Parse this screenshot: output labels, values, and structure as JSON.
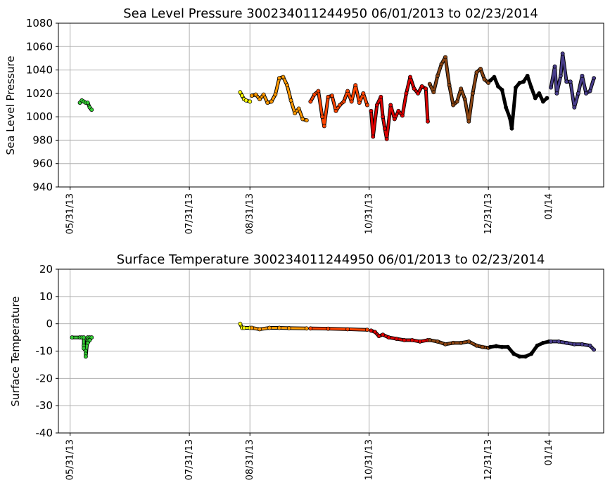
{
  "chart_data": [
    {
      "type": "scatter",
      "title": "Sea Level Pressure 300234011244950  06/01/2013 to 02/23/2014",
      "xlabel": "",
      "ylabel": "Sea Level Pressure",
      "ylim": [
        940,
        1080
      ],
      "yticks": [
        940,
        960,
        980,
        1000,
        1020,
        1040,
        1060,
        1080
      ],
      "x_axis": {
        "type": "date",
        "range": [
          "2013-05-25",
          "2014-02-28"
        ]
      },
      "xticks": [
        {
          "date": "2013-05-31",
          "label": "05/31/13"
        },
        {
          "date": "2013-07-31",
          "label": "07/31/13"
        },
        {
          "date": "2013-08-31",
          "label": "08/31/13"
        },
        {
          "date": "2013-10-31",
          "label": "10/31/13"
        },
        {
          "date": "2013-12-31",
          "label": "12/31/13"
        },
        {
          "date": "2014-01-31",
          "label": "01/14"
        }
      ],
      "grid": true,
      "colors": {
        "jun": "#33cc33",
        "aug": "#ffff00",
        "sep": "#ff9900",
        "oct": "#ff4400",
        "nov": "#dd0000",
        "dec": "#8b4513",
        "jan": "#000000",
        "feb": "#483d8b"
      },
      "series": [
        {
          "color": "jun",
          "points": [
            [
              "2013-06-05",
              1012
            ],
            [
              "2013-06-06",
              1014
            ],
            [
              "2013-06-07",
              1013
            ],
            [
              "2013-06-08",
              1012
            ],
            [
              "2013-06-09",
              1012
            ],
            [
              "2013-06-10",
              1008
            ],
            [
              "2013-06-11",
              1006
            ]
          ]
        },
        {
          "color": "aug",
          "points": [
            [
              "2013-08-26",
              1021
            ],
            [
              "2013-08-27",
              1018
            ],
            [
              "2013-08-28",
              1015
            ],
            [
              "2013-08-29",
              1014
            ],
            [
              "2013-08-31",
              1013
            ]
          ]
        },
        {
          "color": "sep",
          "points": [
            [
              "2013-09-01",
              1018
            ],
            [
              "2013-09-03",
              1019
            ],
            [
              "2013-09-05",
              1015
            ],
            [
              "2013-09-07",
              1019
            ],
            [
              "2013-09-09",
              1012
            ],
            [
              "2013-09-11",
              1013
            ],
            [
              "2013-09-13",
              1019
            ],
            [
              "2013-09-15",
              1033
            ],
            [
              "2013-09-17",
              1034
            ],
            [
              "2013-09-19",
              1027
            ],
            [
              "2013-09-21",
              1014
            ],
            [
              "2013-09-23",
              1003
            ],
            [
              "2013-09-25",
              1007
            ],
            [
              "2013-09-27",
              998
            ],
            [
              "2013-09-29",
              997
            ]
          ]
        },
        {
          "color": "oct",
          "points": [
            [
              "2013-10-01",
              1013
            ],
            [
              "2013-10-03",
              1019
            ],
            [
              "2013-10-05",
              1022
            ],
            [
              "2013-10-07",
              1000
            ],
            [
              "2013-10-08",
              992
            ],
            [
              "2013-10-10",
              1017
            ],
            [
              "2013-10-12",
              1018
            ],
            [
              "2013-10-14",
              1005
            ],
            [
              "2013-10-16",
              1010
            ],
            [
              "2013-10-18",
              1013
            ],
            [
              "2013-10-20",
              1022
            ],
            [
              "2013-10-22",
              1013
            ],
            [
              "2013-10-24",
              1027
            ],
            [
              "2013-10-26",
              1012
            ],
            [
              "2013-10-28",
              1020
            ],
            [
              "2013-10-30",
              1010
            ]
          ]
        },
        {
          "color": "nov",
          "points": [
            [
              "2013-11-01",
              1005
            ],
            [
              "2013-11-02",
              983
            ],
            [
              "2013-11-04",
              1010
            ],
            [
              "2013-11-06",
              1017
            ],
            [
              "2013-11-07",
              1000
            ],
            [
              "2013-11-08",
              990
            ],
            [
              "2013-11-09",
              981
            ],
            [
              "2013-11-11",
              1010
            ],
            [
              "2013-11-13",
              998
            ],
            [
              "2013-11-15",
              1005
            ],
            [
              "2013-11-17",
              1001
            ],
            [
              "2013-11-19",
              1020
            ],
            [
              "2013-11-21",
              1034
            ],
            [
              "2013-11-23",
              1024
            ],
            [
              "2013-11-25",
              1020
            ],
            [
              "2013-11-27",
              1026
            ],
            [
              "2013-11-29",
              1024
            ],
            [
              "2013-11-30",
              996
            ]
          ]
        },
        {
          "color": "dec",
          "points": [
            [
              "2013-12-01",
              1028
            ],
            [
              "2013-12-03",
              1021
            ],
            [
              "2013-12-05",
              1035
            ],
            [
              "2013-12-07",
              1045
            ],
            [
              "2013-12-09",
              1051
            ],
            [
              "2013-12-11",
              1027
            ],
            [
              "2013-12-13",
              1010
            ],
            [
              "2013-12-15",
              1013
            ],
            [
              "2013-12-17",
              1024
            ],
            [
              "2013-12-19",
              1015
            ],
            [
              "2013-12-21",
              996
            ],
            [
              "2013-12-23",
              1020
            ],
            [
              "2013-12-25",
              1038
            ],
            [
              "2013-12-27",
              1041
            ],
            [
              "2013-12-29",
              1032
            ],
            [
              "2013-12-31",
              1029
            ]
          ]
        },
        {
          "color": "jan",
          "points": [
            [
              "2014-01-01",
              1031
            ],
            [
              "2014-01-03",
              1034
            ],
            [
              "2014-01-05",
              1026
            ],
            [
              "2014-01-07",
              1023
            ],
            [
              "2014-01-09",
              1008
            ],
            [
              "2014-01-11",
              999
            ],
            [
              "2014-01-12",
              990
            ],
            [
              "2014-01-14",
              1025
            ],
            [
              "2014-01-16",
              1029
            ],
            [
              "2014-01-18",
              1030
            ],
            [
              "2014-01-20",
              1035
            ],
            [
              "2014-01-22",
              1025
            ],
            [
              "2014-01-24",
              1016
            ],
            [
              "2014-01-26",
              1020
            ],
            [
              "2014-01-28",
              1013
            ],
            [
              "2014-01-30",
              1016
            ]
          ]
        },
        {
          "color": "feb",
          "points": [
            [
              "2014-02-01",
              1025
            ],
            [
              "2014-02-03",
              1043
            ],
            [
              "2014-02-04",
              1020
            ],
            [
              "2014-02-06",
              1035
            ],
            [
              "2014-02-07",
              1054
            ],
            [
              "2014-02-09",
              1030
            ],
            [
              "2014-02-11",
              1030
            ],
            [
              "2014-02-13",
              1008
            ],
            [
              "2014-02-15",
              1020
            ],
            [
              "2014-02-17",
              1035
            ],
            [
              "2014-02-19",
              1020
            ],
            [
              "2014-02-21",
              1022
            ],
            [
              "2014-02-23",
              1033
            ]
          ]
        }
      ]
    },
    {
      "type": "scatter",
      "title": "Surface Temperature 300234011244950  06/01/2013 to 02/23/2014",
      "xlabel": "",
      "ylabel": "Surface Temperature",
      "ylim": [
        -40,
        20
      ],
      "yticks": [
        -40,
        -30,
        -20,
        -10,
        0,
        10,
        20
      ],
      "x_axis": {
        "type": "date",
        "range": [
          "2013-05-25",
          "2014-02-28"
        ]
      },
      "xticks": [
        {
          "date": "2013-05-31",
          "label": "05/31/13"
        },
        {
          "date": "2013-07-31",
          "label": "07/31/13"
        },
        {
          "date": "2013-08-31",
          "label": "08/31/13"
        },
        {
          "date": "2013-10-31",
          "label": "10/31/13"
        },
        {
          "date": "2013-12-31",
          "label": "12/31/13"
        },
        {
          "date": "2014-01-31",
          "label": "01/14"
        }
      ],
      "grid": true,
      "colors": {
        "jun": "#33cc33",
        "aug": "#ffff00",
        "sep": "#ff9900",
        "oct": "#ff4400",
        "nov": "#dd0000",
        "dec": "#8b4513",
        "jan": "#000000",
        "feb": "#483d8b"
      },
      "series": [
        {
          "color": "jun",
          "points": [
            [
              "2013-06-01",
              -5
            ],
            [
              "2013-06-05",
              -5
            ],
            [
              "2013-06-06",
              -5
            ],
            [
              "2013-06-07",
              -5
            ],
            [
              "2013-06-07",
              -8
            ],
            [
              "2013-06-07",
              -9
            ],
            [
              "2013-06-08",
              -10
            ],
            [
              "2013-06-08",
              -11
            ],
            [
              "2013-06-08",
              -12
            ],
            [
              "2013-06-09",
              -5
            ],
            [
              "2013-06-10",
              -5
            ],
            [
              "2013-06-11",
              -5
            ],
            [
              "2013-06-09",
              -7
            ],
            [
              "2013-06-10",
              -6
            ]
          ]
        },
        {
          "color": "aug",
          "points": [
            [
              "2013-08-26",
              0
            ],
            [
              "2013-08-27",
              -1.5
            ],
            [
              "2013-08-28",
              -1.5
            ],
            [
              "2013-08-31",
              -1.5
            ]
          ]
        },
        {
          "color": "sep",
          "points": [
            [
              "2013-09-01",
              -1.5
            ],
            [
              "2013-09-05",
              -2
            ],
            [
              "2013-09-10",
              -1.5
            ],
            [
              "2013-09-15",
              -1.5
            ],
            [
              "2013-09-20",
              -1.6
            ],
            [
              "2013-09-29",
              -1.7
            ]
          ]
        },
        {
          "color": "oct",
          "points": [
            [
              "2013-10-01",
              -1.7
            ],
            [
              "2013-10-10",
              -1.8
            ],
            [
              "2013-10-20",
              -2
            ],
            [
              "2013-10-30",
              -2.2
            ]
          ]
        },
        {
          "color": "nov",
          "points": [
            [
              "2013-11-01",
              -2.5
            ],
            [
              "2013-11-03",
              -3
            ],
            [
              "2013-11-05",
              -4.5
            ],
            [
              "2013-11-07",
              -4
            ],
            [
              "2013-11-10",
              -5
            ],
            [
              "2013-11-14",
              -5.5
            ],
            [
              "2013-11-18",
              -6
            ],
            [
              "2013-11-22",
              -6
            ],
            [
              "2013-11-26",
              -6.5
            ],
            [
              "2013-11-30",
              -6
            ]
          ]
        },
        {
          "color": "dec",
          "points": [
            [
              "2013-12-01",
              -6
            ],
            [
              "2013-12-05",
              -6.5
            ],
            [
              "2013-12-09",
              -7.5
            ],
            [
              "2013-12-13",
              -7
            ],
            [
              "2013-12-17",
              -7
            ],
            [
              "2013-12-21",
              -6.5
            ],
            [
              "2013-12-25",
              -8
            ],
            [
              "2013-12-28",
              -8.5
            ],
            [
              "2013-12-31",
              -8.8
            ]
          ]
        },
        {
          "color": "jan",
          "points": [
            [
              "2014-01-01",
              -8.5
            ],
            [
              "2014-01-04",
              -8.2
            ],
            [
              "2014-01-07",
              -8.5
            ],
            [
              "2014-01-10",
              -8.5
            ],
            [
              "2014-01-13",
              -11
            ],
            [
              "2014-01-16",
              -12
            ],
            [
              "2014-01-19",
              -12
            ],
            [
              "2014-01-22",
              -11
            ],
            [
              "2014-01-25",
              -8
            ],
            [
              "2014-01-28",
              -7
            ],
            [
              "2014-01-31",
              -6.5
            ]
          ]
        },
        {
          "color": "feb",
          "points": [
            [
              "2014-02-01",
              -6.5
            ],
            [
              "2014-02-05",
              -6.5
            ],
            [
              "2014-02-09",
              -7
            ],
            [
              "2014-02-13",
              -7.5
            ],
            [
              "2014-02-17",
              -7.5
            ],
            [
              "2014-02-21",
              -8
            ],
            [
              "2014-02-23",
              -9.5
            ]
          ]
        }
      ]
    }
  ]
}
